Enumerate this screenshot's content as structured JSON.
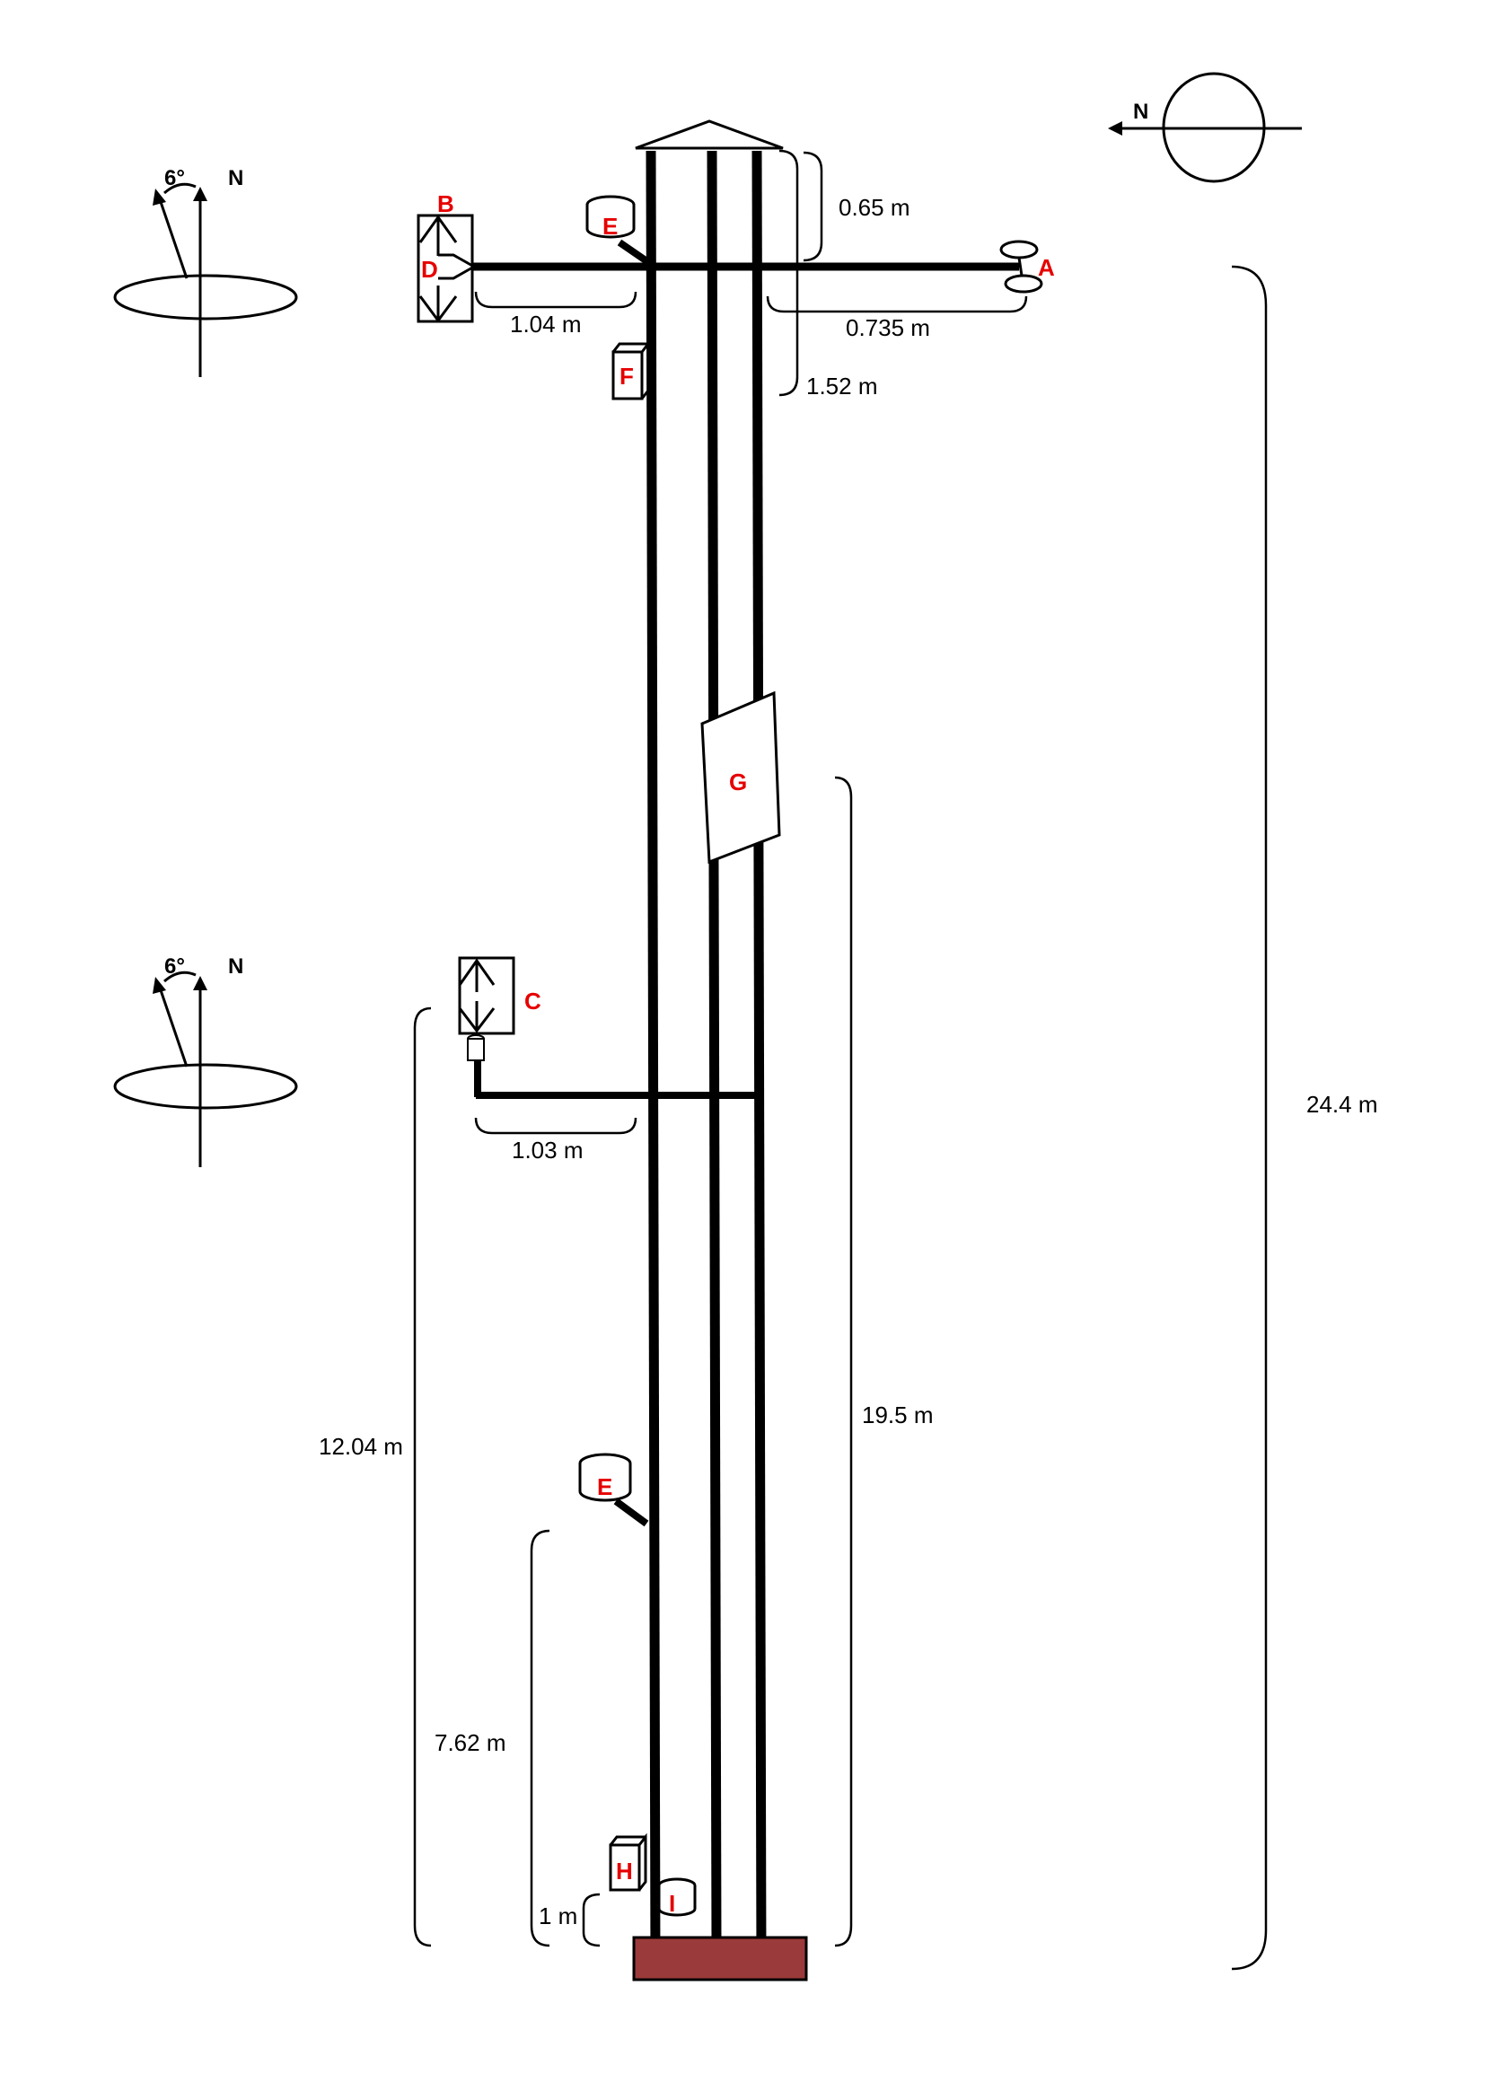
{
  "labels": {
    "A": "A",
    "B": "B",
    "C": "C",
    "D": "D",
    "E": "E",
    "F": "F",
    "G": "G",
    "H": "H",
    "I": "I"
  },
  "dimensions": {
    "top_boom_offset": "0.65 m",
    "left_boom_top": "1.04 m",
    "right_boom_top": "0.735 m",
    "radiometer_drop": "1.52 m",
    "left_boom_mid": "1.03 m",
    "mid_boom_height": "12.04 m",
    "panel_height": "19.5 m",
    "lower_sensor_height": "7.62 m",
    "base_sensor_height": "1 m",
    "tower_height": "24.4 m"
  },
  "north": {
    "letter": "N",
    "angle_top": "6°",
    "angle_mid": "6°"
  },
  "colors": {
    "label": "#e60000",
    "base": "#9b3a3a"
  }
}
